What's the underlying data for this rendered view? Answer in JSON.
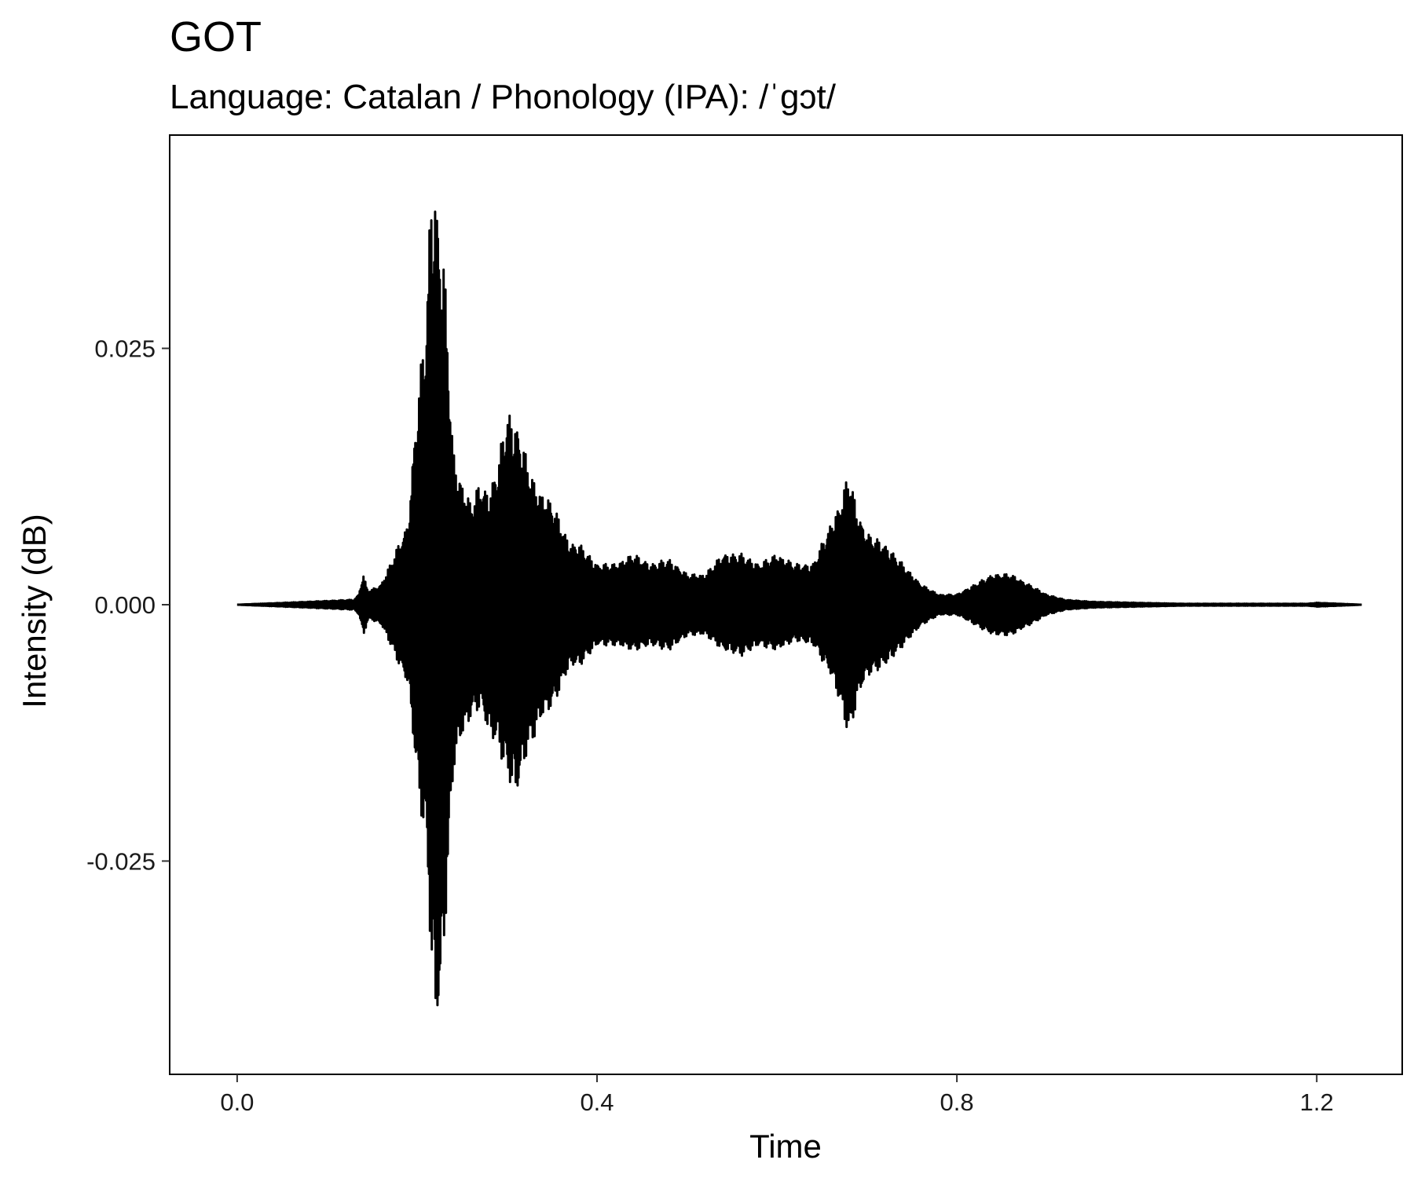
{
  "chart_data": {
    "type": "line",
    "title": "GOT",
    "subtitle": "Language: Catalan / Phonology (IPA): /ˈgɔt/",
    "xlabel": "Time",
    "ylabel": "Intensity (dB)",
    "xlim": [
      -0.075,
      1.295
    ],
    "ylim": [
      -0.0458,
      0.0458
    ],
    "x_ticks": [
      0.0,
      0.4,
      0.8,
      1.2
    ],
    "x_tick_labels": [
      "0.0",
      "0.4",
      "0.8",
      "1.2"
    ],
    "y_ticks": [
      0.025,
      0.0,
      -0.025
    ],
    "y_tick_labels": [
      "0.025",
      "0.000",
      "-0.025"
    ],
    "grid": false,
    "line_color": "#000000",
    "series": [
      {
        "kind": "waveform-envelope",
        "x": [
          0.0,
          0.13,
          0.135,
          0.14,
          0.145,
          0.15,
          0.16,
          0.17,
          0.18,
          0.19,
          0.2,
          0.21,
          0.215,
          0.22,
          0.225,
          0.23,
          0.24,
          0.25,
          0.26,
          0.27,
          0.28,
          0.29,
          0.3,
          0.31,
          0.32,
          0.33,
          0.34,
          0.35,
          0.36,
          0.37,
          0.38,
          0.4,
          0.42,
          0.44,
          0.46,
          0.48,
          0.5,
          0.52,
          0.54,
          0.56,
          0.58,
          0.6,
          0.62,
          0.64,
          0.66,
          0.67,
          0.68,
          0.69,
          0.7,
          0.72,
          0.74,
          0.76,
          0.78,
          0.8,
          0.82,
          0.84,
          0.86,
          0.88,
          0.9,
          0.92,
          0.95,
          1.0,
          1.05,
          1.1,
          1.15,
          1.19,
          1.2,
          1.25
        ],
        "upper": [
          0.0,
          0.0005,
          0.001,
          0.003,
          0.0015,
          0.0015,
          0.002,
          0.004,
          0.006,
          0.008,
          0.02,
          0.028,
          0.04,
          0.042,
          0.036,
          0.034,
          0.015,
          0.012,
          0.01,
          0.012,
          0.011,
          0.014,
          0.019,
          0.018,
          0.015,
          0.012,
          0.011,
          0.01,
          0.008,
          0.006,
          0.006,
          0.004,
          0.004,
          0.005,
          0.004,
          0.0045,
          0.003,
          0.003,
          0.005,
          0.005,
          0.004,
          0.005,
          0.004,
          0.004,
          0.008,
          0.01,
          0.013,
          0.009,
          0.007,
          0.006,
          0.004,
          0.002,
          0.001,
          0.001,
          0.002,
          0.003,
          0.003,
          0.002,
          0.001,
          0.0005,
          0.0003,
          0.0002,
          0.0001,
          0.0001,
          0.0001,
          0.0001,
          0.0002,
          0.0
        ],
        "lower": [
          0.0,
          -0.0005,
          -0.001,
          -0.003,
          -0.0015,
          -0.0015,
          -0.002,
          -0.004,
          -0.006,
          -0.008,
          -0.018,
          -0.024,
          -0.035,
          -0.042,
          -0.04,
          -0.033,
          -0.016,
          -0.013,
          -0.011,
          -0.01,
          -0.013,
          -0.014,
          -0.017,
          -0.019,
          -0.015,
          -0.013,
          -0.011,
          -0.01,
          -0.008,
          -0.006,
          -0.006,
          -0.004,
          -0.004,
          -0.0045,
          -0.004,
          -0.0045,
          -0.003,
          -0.003,
          -0.0045,
          -0.005,
          -0.004,
          -0.0045,
          -0.0035,
          -0.004,
          -0.007,
          -0.01,
          -0.013,
          -0.009,
          -0.007,
          -0.006,
          -0.004,
          -0.002,
          -0.001,
          -0.001,
          -0.002,
          -0.003,
          -0.003,
          -0.002,
          -0.001,
          -0.0005,
          -0.0003,
          -0.0002,
          -0.0001,
          -0.0001,
          -0.0001,
          -0.0001,
          -0.0002,
          0.0
        ]
      }
    ]
  }
}
